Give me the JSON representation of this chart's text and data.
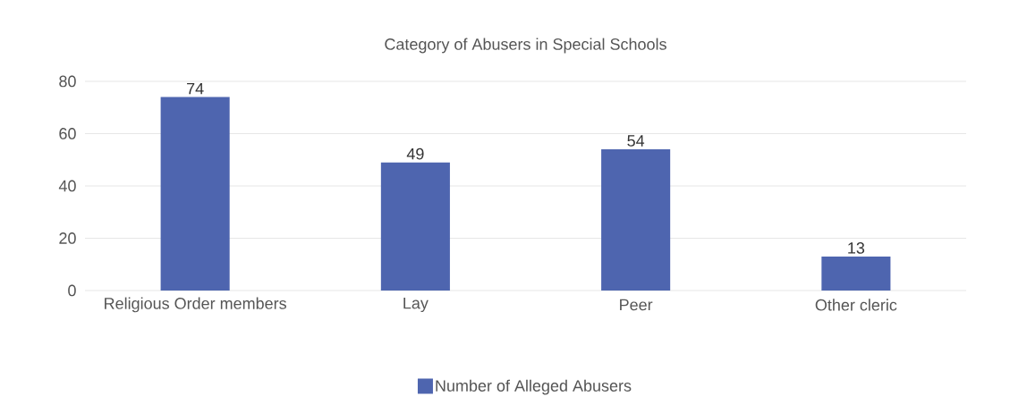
{
  "chart_data": {
    "type": "bar",
    "title": "Category of Abusers in Special Schools",
    "categories": [
      "Religious Order members",
      "Lay",
      "Peer",
      "Other cleric"
    ],
    "series": [
      {
        "name": "Number of Alleged Abusers",
        "color": "#4e65af",
        "values": [
          74,
          49,
          54,
          13
        ]
      }
    ],
    "ylim": [
      0,
      80
    ],
    "yticks": [
      0,
      20,
      40,
      60,
      80
    ],
    "grid": "y",
    "legend": "bottom",
    "data_labels": true
  }
}
